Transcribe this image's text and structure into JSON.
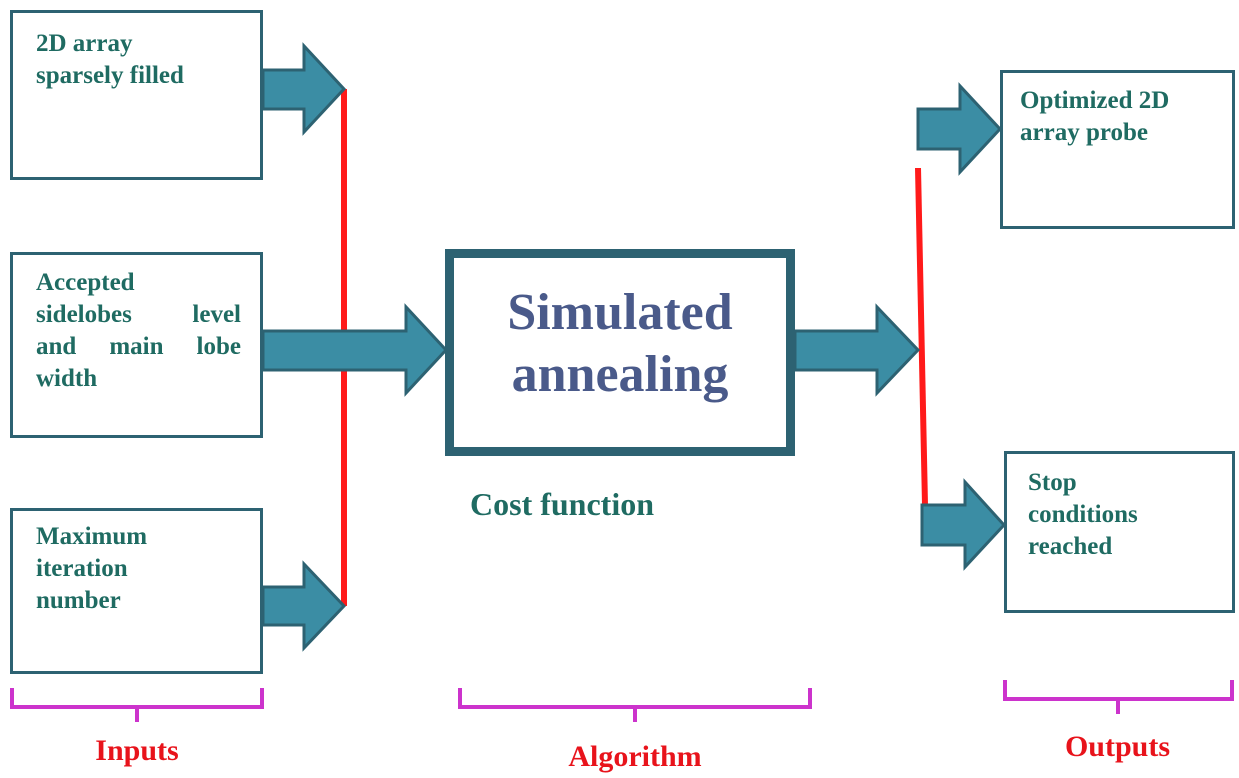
{
  "inputs": {
    "box1": {
      "line1": "2D array",
      "line2": "sparsely filled"
    },
    "box2": {
      "line1": "Accepted",
      "line2": "sidelobes level",
      "line3": "and main lobe",
      "line4": "width"
    },
    "box3": {
      "line1": "Maximum",
      "line2": "iteration",
      "line3": "number"
    }
  },
  "algorithm": {
    "line1": "Simulated",
    "line2": "annealing",
    "caption": "Cost function"
  },
  "outputs": {
    "box1": {
      "line1": "Optimized 2D",
      "line2": "array probe"
    },
    "box2": {
      "line1": "Stop",
      "line2": "conditions",
      "line3": "reached"
    }
  },
  "labels": {
    "inputs": "Inputs",
    "algorithm": "Algorithm",
    "outputs": "Outputs"
  },
  "colors": {
    "box_border": "#2d6272",
    "arrow_fill": "#3b8da4",
    "connector": "#ff1a1a",
    "brace": "#cc33cc",
    "label": "#e8131b",
    "box_text": "#1f6b62",
    "algo_text": "#4a5a8a"
  }
}
